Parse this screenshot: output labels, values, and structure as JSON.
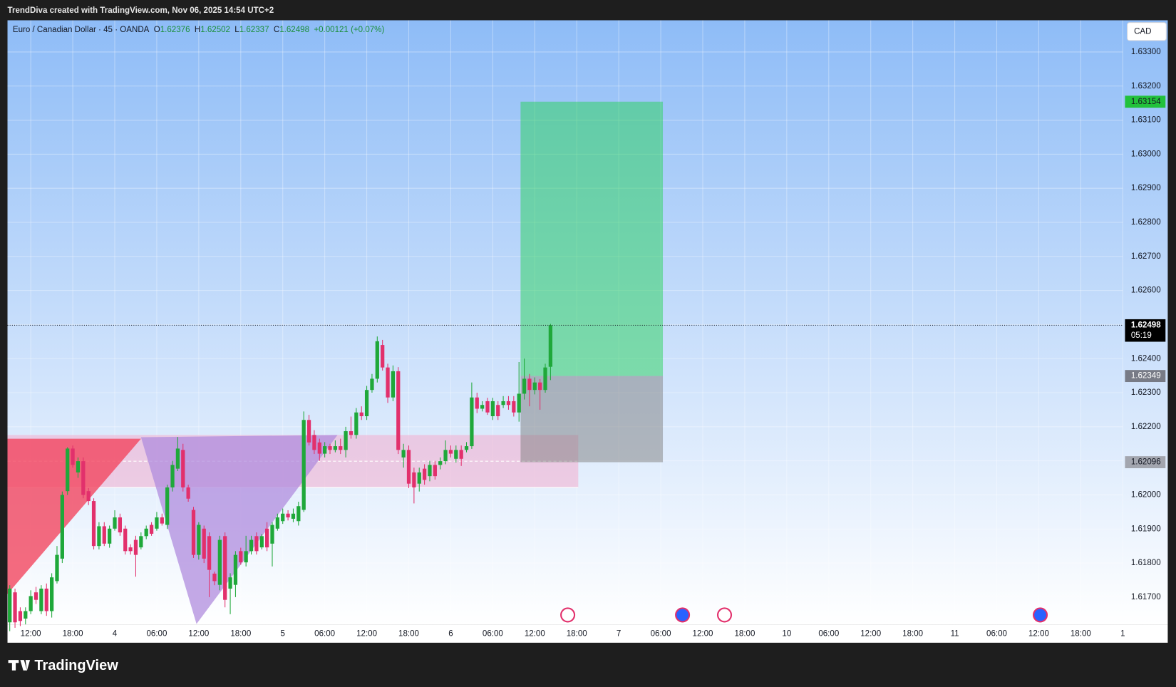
{
  "header": {
    "caption": "TrendDiva created with TradingView.com, Nov 06, 2025 14:54 UTC+2"
  },
  "chart_data": {
    "type": "candlestick",
    "title": "Euro / Canadian Dollar · 45 · OANDA",
    "legend": {
      "labels": [
        "O",
        "H",
        "L",
        "C"
      ],
      "values": [
        1.62376,
        1.62502,
        1.62337,
        1.62498
      ],
      "change": "+0.00121 (+0.07%)"
    },
    "x": [
      -4,
      -3,
      -2,
      -1,
      0,
      1,
      2,
      3,
      4,
      5,
      6,
      7,
      8,
      9,
      10,
      11,
      12,
      13,
      14,
      15,
      16,
      17,
      18,
      19,
      20,
      21,
      22,
      23,
      24,
      25,
      26,
      27,
      28,
      29,
      30,
      31,
      32,
      33,
      34,
      35,
      36,
      37,
      38,
      39,
      40,
      41,
      42,
      43,
      44,
      45,
      46,
      47,
      48,
      49,
      50,
      51,
      52,
      53,
      54,
      55,
      56,
      57,
      58,
      59,
      60,
      61,
      62,
      63,
      64,
      65,
      66,
      67,
      68,
      69,
      70,
      71,
      72,
      73,
      74,
      75,
      76,
      77,
      78,
      79,
      80,
      81,
      82,
      83,
      84,
      85,
      86,
      87,
      88,
      89,
      90,
      91,
      92,
      93,
      94,
      95,
      96,
      97,
      98,
      99
    ],
    "open": [
      1.61626,
      1.61714,
      1.61659,
      1.61637,
      1.61659,
      1.61714,
      1.61659,
      1.61725,
      1.61659,
      1.61747,
      1.61813,
      1.62011,
      1.62136,
      1.62066,
      1.62099,
      1.62011,
      1.61982,
      1.6185,
      1.61908,
      1.61857,
      1.61901,
      1.61934,
      1.61901,
      1.61846,
      1.61868,
      1.61846,
      1.61879,
      1.61912,
      1.61901,
      1.61934,
      1.61912,
      1.62022,
      1.62077,
      1.62132,
      1.62022,
      1.61956,
      1.61824,
      1.61901,
      1.61879,
      1.61769,
      1.61736,
      1.61879,
      1.61725,
      1.61736,
      1.61835,
      1.61802,
      1.61835,
      1.61879,
      1.61846,
      1.61901,
      1.61857,
      1.61901,
      1.61923,
      1.61945,
      1.6193,
      1.61923,
      1.61956,
      1.6222,
      1.62176,
      1.62154,
      1.62121,
      1.62143,
      1.62132,
      1.62143,
      1.62132,
      1.62187,
      1.62176,
      1.62242,
      1.62231,
      1.62308,
      1.62341,
      1.6244,
      1.62374,
      1.62286,
      1.62363,
      1.6211,
      1.62132,
      1.62066,
      1.62033,
      1.62077,
      1.62055,
      1.62088,
      1.62088,
      1.62099,
      1.62132,
      1.62106,
      1.62132,
      1.62132,
      1.62143,
      1.62286,
      1.62253,
      1.62275,
      1.62231,
      1.62264,
      1.62264,
      1.62275,
      1.62275,
      1.62242,
      1.62297,
      1.62341,
      1.62308,
      1.6233,
      1.62308,
      1.62376
    ],
    "high": [
      1.61735,
      1.61725,
      1.6167,
      1.6167,
      1.6172,
      1.6173,
      1.61735,
      1.6174,
      1.6177,
      1.6185,
      1.6201,
      1.6214,
      1.62145,
      1.6211,
      1.6211,
      1.6202,
      1.6199,
      1.6192,
      1.6192,
      1.6191,
      1.61955,
      1.61945,
      1.6191,
      1.61855,
      1.6188,
      1.6189,
      1.6191,
      1.6192,
      1.6195,
      1.61945,
      1.6203,
      1.621,
      1.6217,
      1.6215,
      1.6203,
      1.61965,
      1.6192,
      1.6191,
      1.6189,
      1.61775,
      1.6188,
      1.6189,
      1.6177,
      1.61835,
      1.61845,
      1.6188,
      1.6188,
      1.6189,
      1.61885,
      1.6192,
      1.6192,
      1.61945,
      1.6196,
      1.61955,
      1.6196,
      1.6198,
      1.62245,
      1.62235,
      1.6219,
      1.62165,
      1.62155,
      1.6215,
      1.6216,
      1.62165,
      1.622,
      1.6223,
      1.62255,
      1.6226,
      1.6232,
      1.62355,
      1.62465,
      1.62455,
      1.62385,
      1.6238,
      1.62375,
      1.6215,
      1.62145,
      1.6208,
      1.6208,
      1.6209,
      1.621,
      1.621,
      1.6211,
      1.6216,
      1.62145,
      1.62145,
      1.62145,
      1.62155,
      1.6233,
      1.623,
      1.62275,
      1.62285,
      1.62285,
      1.62275,
      1.6229,
      1.6229,
      1.6229,
      1.6239,
      1.624,
      1.62355,
      1.62345,
      1.6234,
      1.62385,
      1.62502
    ],
    "low": [
      1.616,
      1.6161,
      1.61615,
      1.6162,
      1.6165,
      1.6168,
      1.6165,
      1.61645,
      1.6164,
      1.6174,
      1.618,
      1.62,
      1.6208,
      1.6205,
      1.6199,
      1.6197,
      1.6184,
      1.6184,
      1.6185,
      1.61845,
      1.61895,
      1.6188,
      1.61825,
      1.61825,
      1.6176,
      1.6184,
      1.6187,
      1.6188,
      1.61895,
      1.6191,
      1.619,
      1.6201,
      1.6207,
      1.6201,
      1.6198,
      1.61815,
      1.6181,
      1.618,
      1.617,
      1.61735,
      1.6172,
      1.6167,
      1.6165,
      1.617,
      1.61795,
      1.6179,
      1.61825,
      1.61825,
      1.6184,
      1.61835,
      1.6179,
      1.61895,
      1.61915,
      1.61925,
      1.6192,
      1.6191,
      1.6195,
      1.62145,
      1.6212,
      1.621,
      1.6211,
      1.6212,
      1.62125,
      1.6212,
      1.6211,
      1.62165,
      1.62165,
      1.6222,
      1.6222,
      1.623,
      1.6233,
      1.62365,
      1.6227,
      1.62275,
      1.6212,
      1.6208,
      1.6202,
      1.61975,
      1.6201,
      1.6203,
      1.6204,
      1.62045,
      1.62075,
      1.6209,
      1.6211,
      1.62095,
      1.62085,
      1.62125,
      1.62135,
      1.6224,
      1.62245,
      1.62235,
      1.6222,
      1.6222,
      1.62255,
      1.6225,
      1.6223,
      1.62215,
      1.6228,
      1.6226,
      1.62295,
      1.6225,
      1.623,
      1.62337
    ],
    "close": [
      1.61725,
      1.61626,
      1.6163,
      1.61659,
      1.61703,
      1.61692,
      1.61725,
      1.61659,
      1.61758,
      1.61824,
      1.62,
      1.62136,
      1.62088,
      1.62099,
      1.62,
      1.61982,
      1.6185,
      1.61908,
      1.61857,
      1.61901,
      1.61934,
      1.6189,
      1.61835,
      1.61835,
      1.61824,
      1.61879,
      1.61901,
      1.61886,
      1.61934,
      1.61916,
      1.62022,
      1.62088,
      1.62136,
      1.62022,
      1.61989,
      1.61824,
      1.61912,
      1.61813,
      1.6178,
      1.61747,
      1.61868,
      1.61692,
      1.61758,
      1.61824,
      1.61802,
      1.61835,
      1.61868,
      1.61835,
      1.61879,
      1.61846,
      1.61912,
      1.61934,
      1.61945,
      1.61934,
      1.61945,
      1.61967,
      1.6222,
      1.62154,
      1.62132,
      1.62121,
      1.62143,
      1.62132,
      1.62143,
      1.62132,
      1.62187,
      1.62176,
      1.62242,
      1.62231,
      1.62308,
      1.62341,
      1.62451,
      1.62374,
      1.62286,
      1.62363,
      1.62132,
      1.62132,
      1.62033,
      1.62022,
      1.62066,
      1.62044,
      1.62088,
      1.62055,
      1.62099,
      1.62132,
      1.62121,
      1.62132,
      1.62106,
      1.62143,
      1.62286,
      1.62253,
      1.62264,
      1.62242,
      1.62275,
      1.62231,
      1.62275,
      1.62264,
      1.62242,
      1.62297,
      1.62341,
      1.62308,
      1.6233,
      1.62308,
      1.62374,
      1.62498
    ],
    "up_color": "#1fa83a",
    "down_color": "#e2306c",
    "xlim": [
      -4.43,
      208
    ],
    "xticks": [
      {
        "value": 0,
        "label": "12:00"
      },
      {
        "value": 8,
        "label": "18:00"
      },
      {
        "value": 16,
        "label": "4"
      },
      {
        "value": 24,
        "label": "06:00"
      },
      {
        "value": 32,
        "label": "12:00"
      },
      {
        "value": 40,
        "label": "18:00"
      },
      {
        "value": 48,
        "label": "5"
      },
      {
        "value": 56,
        "label": "06:00"
      },
      {
        "value": 64,
        "label": "12:00"
      },
      {
        "value": 72,
        "label": "18:00"
      },
      {
        "value": 80,
        "label": "6"
      },
      {
        "value": 88,
        "label": "06:00"
      },
      {
        "value": 96,
        "label": "12:00"
      },
      {
        "value": 104,
        "label": "18:00"
      },
      {
        "value": 112,
        "label": "7"
      },
      {
        "value": 120,
        "label": "06:00"
      },
      {
        "value": 128,
        "label": "12:00"
      },
      {
        "value": 136,
        "label": "18:00"
      },
      {
        "value": 144,
        "label": "10"
      },
      {
        "value": 152,
        "label": "06:00"
      },
      {
        "value": 160,
        "label": "12:00"
      },
      {
        "value": 168,
        "label": "18:00"
      },
      {
        "value": 176,
        "label": "11"
      },
      {
        "value": 184,
        "label": "06:00"
      },
      {
        "value": 192,
        "label": "12:00"
      },
      {
        "value": 200,
        "label": "18:00"
      },
      {
        "value": 208,
        "label": "1"
      }
    ],
    "ylim": [
      1.61619,
      1.63393
    ],
    "yticks": [
      {
        "value": 1.617,
        "label": "1.61700"
      },
      {
        "value": 1.618,
        "label": "1.61800"
      },
      {
        "value": 1.619,
        "label": "1.61900"
      },
      {
        "value": 1.62,
        "label": "1.62000"
      },
      {
        "value": 1.621,
        "label": "1.62100"
      },
      {
        "value": 1.622,
        "label": "1.62200"
      },
      {
        "value": 1.623,
        "label": "1.62300"
      },
      {
        "value": 1.624,
        "label": "1.62400"
      },
      {
        "value": 1.625,
        "label": "1.62500"
      },
      {
        "value": 1.626,
        "label": "1.62600"
      },
      {
        "value": 1.627,
        "label": "1.62700"
      },
      {
        "value": 1.628,
        "label": "1.62800"
      },
      {
        "value": 1.629,
        "label": "1.62900"
      },
      {
        "value": 1.63,
        "label": "1.63000"
      },
      {
        "value": 1.631,
        "label": "1.63100"
      },
      {
        "value": 1.632,
        "label": "1.63200"
      },
      {
        "value": 1.633,
        "label": "1.63300"
      }
    ],
    "grid": true,
    "position": {
      "x_range": [
        93.3,
        120.4
      ],
      "entry": 1.62349,
      "target": 1.63154,
      "stop": 1.62096,
      "target_color": "#22c13b",
      "entry_color": "#787b86",
      "stop_color": "#a3a6af"
    },
    "last_price": {
      "value": 1.62498,
      "countdown": "05:19"
    },
    "currency": "CAD"
  },
  "footer": {
    "brand": "TradingView"
  }
}
